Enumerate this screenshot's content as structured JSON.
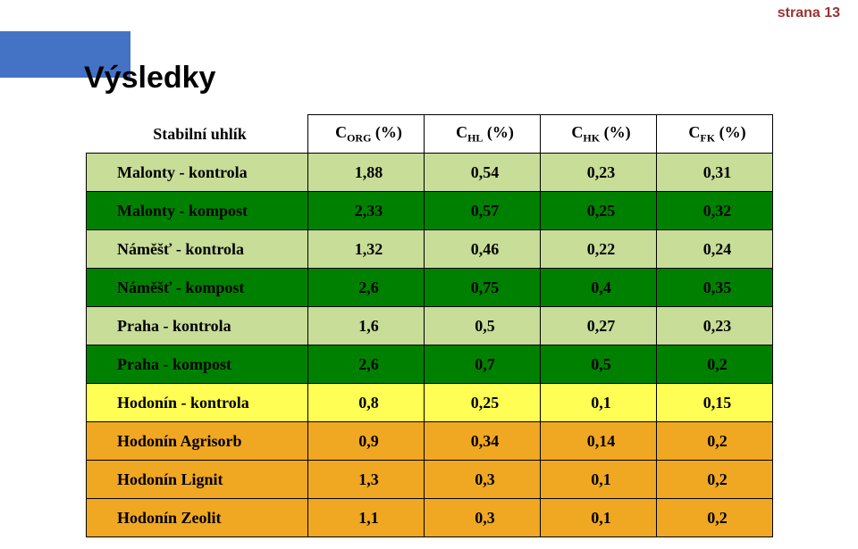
{
  "page_number": "strana 13",
  "title": "Výsledky",
  "colors": {
    "accent_blue": "#4472c4",
    "page_num": "#993333",
    "border": "#000000",
    "bg_white": "#ffffff"
  },
  "header": {
    "label": "Stabilní uhlík",
    "cols": [
      {
        "pre": "C",
        "sub": "ORG",
        "post": " (%)"
      },
      {
        "pre": "C",
        "sub": "HL",
        "post": " (%)"
      },
      {
        "pre": "C",
        "sub": "HK",
        "post": " (%)"
      },
      {
        "pre": "C",
        "sub": "FK",
        "post": " (%)"
      }
    ]
  },
  "rows": [
    {
      "label": "Malonty - kontrola",
      "bg": "#c7dd98",
      "values": [
        "1,88",
        "0,54",
        "0,23",
        "0,31"
      ]
    },
    {
      "label": "Malonty - kompost",
      "bg": "#008000",
      "values": [
        "2,33",
        "0,57",
        "0,25",
        "0,32"
      ]
    },
    {
      "label": "Náměšť - kontrola",
      "bg": "#c7dd98",
      "values": [
        "1,32",
        "0,46",
        "0,22",
        "0,24"
      ]
    },
    {
      "label": "Náměšť - kompost",
      "bg": "#008000",
      "values": [
        "2,6",
        "0,75",
        "0,4",
        "0,35"
      ]
    },
    {
      "label": "Praha - kontrola",
      "bg": "#c7dd98",
      "values": [
        "1,6",
        "0,5",
        "0,27",
        "0,23"
      ]
    },
    {
      "label": "Praha - kompost",
      "bg": "#008000",
      "values": [
        "2,6",
        "0,7",
        "0,5",
        "0,2"
      ]
    },
    {
      "label": "Hodonín - kontrola",
      "bg": "#fffe54",
      "values": [
        "0,8",
        "0,25",
        "0,1",
        "0,15"
      ]
    },
    {
      "label": "Hodonín Agrisorb",
      "bg": "#f0a722",
      "values": [
        "0,9",
        "0,34",
        "0,14",
        "0,2"
      ]
    },
    {
      "label": "Hodonín Lignit",
      "bg": "#f0a722",
      "values": [
        "1,3",
        "0,3",
        "0,1",
        "0,2"
      ]
    },
    {
      "label": "Hodonín Zeolit",
      "bg": "#f0a722",
      "values": [
        "1,1",
        "0,3",
        "0,1",
        "0,2"
      ]
    }
  ]
}
